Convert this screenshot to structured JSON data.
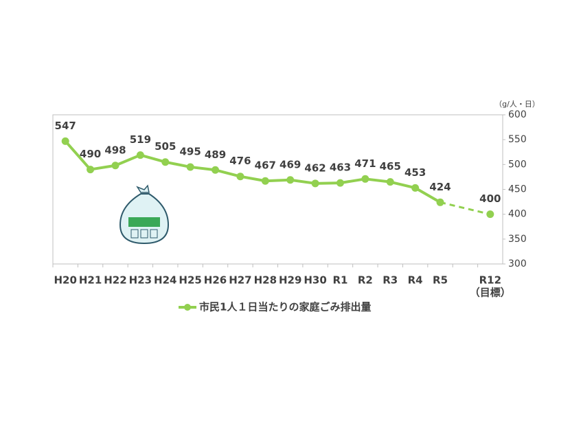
{
  "chart_data": {
    "type": "line",
    "categories": [
      "H20",
      "H21",
      "H22",
      "H23",
      "H24",
      "H25",
      "H26",
      "H27",
      "H28",
      "H29",
      "H30",
      "R1",
      "R2",
      "R3",
      "R4",
      "R5",
      null,
      "R12"
    ],
    "target_label": "（目標）",
    "series": [
      {
        "name": "市民1人１日当たりの家庭ごみ排出量",
        "color": "#92d050",
        "values": [
          547,
          490,
          498,
          519,
          505,
          495,
          489,
          476,
          467,
          469,
          462,
          463,
          471,
          465,
          453,
          424,
          null,
          400
        ]
      }
    ],
    "y_axis_label": "（g/人・日）",
    "ylim": [
      300,
      600
    ],
    "yticks": [
      300,
      350,
      400,
      450,
      500,
      550,
      600
    ],
    "legend": "bottom"
  }
}
